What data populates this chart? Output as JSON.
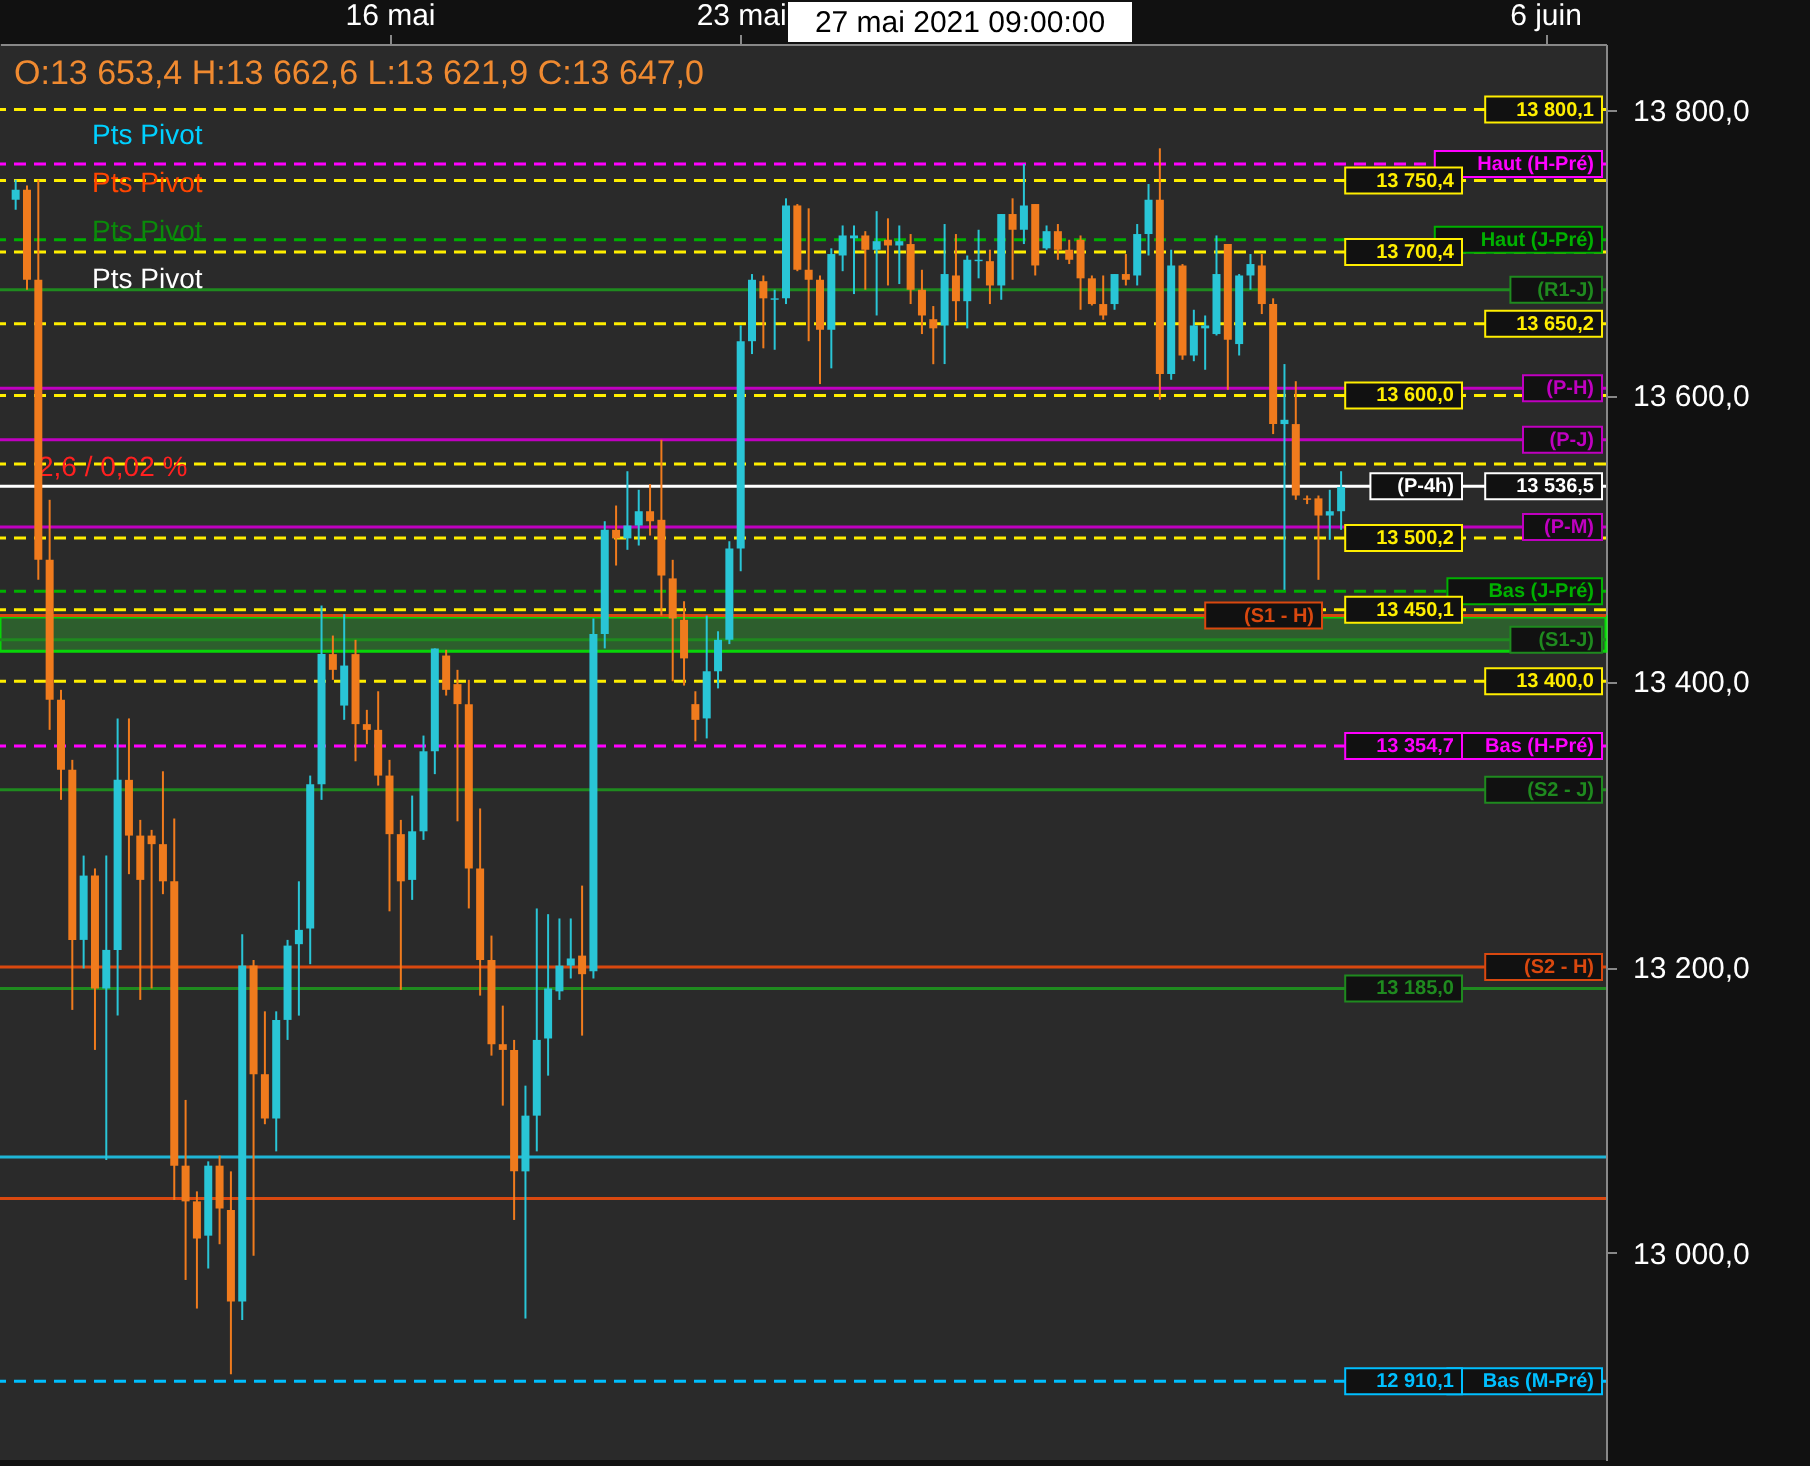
{
  "chart_data": {
    "type": "candlestick",
    "subtitle": "O:13 653,4   H:13 662,6   L:13 621,9   C:13 647,0",
    "categories": [
      null,
      null,
      null,
      null,
      null,
      null,
      null,
      null,
      null,
      null,
      null,
      null,
      null,
      null,
      null,
      null,
      null,
      null,
      null,
      null,
      null,
      null,
      null,
      null,
      null,
      null,
      null,
      null,
      null,
      null,
      null,
      null,
      null,
      "16 mai",
      null,
      null,
      null,
      null,
      null,
      null,
      null,
      null,
      null,
      null,
      null,
      null,
      null,
      null,
      null,
      null,
      null,
      null,
      null,
      null,
      null,
      null,
      null,
      null,
      null,
      null,
      null,
      null,
      null,
      null,
      "23 mai",
      null,
      null,
      null,
      null,
      null,
      null,
      null,
      null,
      null,
      null,
      null,
      null,
      null,
      null,
      null,
      null,
      null,
      null,
      null,
      null,
      null,
      null,
      null,
      null,
      null,
      null,
      null,
      null,
      null,
      null,
      null,
      null,
      null,
      null,
      null,
      null,
      null,
      null,
      null,
      null,
      null,
      null,
      null,
      null,
      null,
      null,
      null,
      null,
      null,
      null,
      null,
      null,
      null,
      null,
      null,
      null,
      null,
      null,
      null,
      null,
      null,
      null,
      null,
      null,
      null,
      null,
      null,
      null,
      null,
      null,
      "6 juin",
      null,
      null,
      null,
      null
    ],
    "ohlc": [
      [
        13737,
        13751,
        13730,
        13744
      ],
      [
        13744,
        13747,
        13674,
        13681
      ],
      [
        13681,
        13751,
        13471,
        13485
      ],
      [
        13485,
        13527,
        13366,
        13387
      ],
      [
        13387,
        13394,
        13317,
        13338
      ],
      [
        13338,
        13345,
        13170,
        13219
      ],
      [
        13219,
        13278,
        13199,
        13264
      ],
      [
        13264,
        13269,
        13142,
        13185
      ],
      [
        13185,
        13278,
        13065,
        13212
      ],
      [
        13212,
        13374,
        13166,
        13331
      ],
      [
        13331,
        13374,
        13265,
        13292
      ],
      [
        13292,
        13303,
        13177,
        13261
      ],
      [
        13292,
        13296,
        13185,
        13286
      ],
      [
        13286,
        13337,
        13251,
        13260
      ],
      [
        13260,
        13304,
        13037,
        13061
      ],
      [
        13061,
        13107,
        12981,
        13036
      ],
      [
        13036,
        13043,
        12961,
        13010
      ],
      [
        13012,
        13064,
        12989,
        13061
      ],
      [
        13061,
        13068,
        13006,
        13031
      ],
      [
        13030,
        13057,
        12915,
        12966
      ],
      [
        12966,
        13223,
        12953,
        13201
      ],
      [
        13201,
        13205,
        12998,
        13125
      ],
      [
        13125,
        13169,
        13090,
        13094
      ],
      [
        13094,
        13169,
        13071,
        13163
      ],
      [
        13163,
        13219,
        13149,
        13215
      ],
      [
        13216,
        13260,
        13166,
        13226
      ],
      [
        13227,
        13334,
        13202,
        13328
      ],
      [
        13328,
        13453,
        13317,
        13419
      ],
      [
        13419,
        13432,
        13401,
        13408
      ],
      [
        13383,
        13447,
        13373,
        13411
      ],
      [
        13419,
        13429,
        13344,
        13370
      ],
      [
        13370,
        13380,
        13356,
        13366
      ],
      [
        13366,
        13393,
        13327,
        13334
      ],
      [
        13334,
        13345,
        13239,
        13293
      ],
      [
        13293,
        13303,
        13184,
        13260
      ],
      [
        13261,
        13320,
        13247,
        13295
      ],
      [
        13295,
        13362,
        13289,
        13351
      ],
      [
        13351,
        13423,
        13335,
        13423
      ],
      [
        13418,
        13422,
        13390,
        13394
      ],
      [
        13398,
        13408,
        13302,
        13384
      ],
      [
        13384,
        13401,
        13241,
        13269
      ],
      [
        13269,
        13311,
        13180,
        13205
      ],
      [
        13205,
        13222,
        13138,
        13146
      ],
      [
        13146,
        13173,
        13103,
        13142
      ],
      [
        13142,
        13149,
        13023,
        13057
      ],
      [
        13057,
        13117,
        12954,
        13096
      ],
      [
        13096,
        13241,
        13071,
        13149
      ],
      [
        13150,
        13237,
        13124,
        13185
      ],
      [
        13183,
        13234,
        13177,
        13201
      ],
      [
        13201,
        13234,
        13192,
        13206
      ],
      [
        13208,
        13257,
        13152,
        13195
      ],
      [
        13197,
        13444,
        13192,
        13433
      ],
      [
        13433,
        13512,
        13423,
        13506
      ],
      [
        13506,
        13523,
        13481,
        13500
      ],
      [
        13500,
        13547,
        13492,
        13509
      ],
      [
        13509,
        13534,
        13495,
        13519
      ],
      [
        13519,
        13538,
        13502,
        13512
      ],
      [
        13513,
        13569,
        13446,
        13474
      ],
      [
        13472,
        13485,
        13400,
        13444
      ],
      [
        13443,
        13456,
        13397,
        13416
      ],
      [
        13384,
        13393,
        13358,
        13373
      ],
      [
        13374,
        13446,
        13360,
        13407
      ],
      [
        13407,
        13435,
        13395,
        13429
      ],
      [
        13429,
        13498,
        13426,
        13493
      ],
      [
        13493,
        13649,
        13477,
        13638
      ],
      [
        13638,
        13685,
        13629,
        13681
      ],
      [
        13680,
        13684,
        13633,
        13668
      ],
      [
        13667,
        13674,
        13632,
        13668
      ],
      [
        13668,
        13738,
        13664,
        13733
      ],
      [
        13733,
        13734,
        13687,
        13688
      ],
      [
        13688,
        13731,
        13638,
        13681
      ],
      [
        13681,
        13684,
        13608,
        13646
      ],
      [
        13646,
        13703,
        13619,
        13699
      ],
      [
        13698,
        13719,
        13687,
        13712
      ],
      [
        13710,
        13719,
        13671,
        13712
      ],
      [
        13712,
        13715,
        13674,
        13702
      ],
      [
        13702,
        13729,
        13656,
        13708
      ],
      [
        13709,
        13724,
        13677,
        13705
      ],
      [
        13705,
        13719,
        13678,
        13708
      ],
      [
        13706,
        13713,
        13664,
        13674
      ],
      [
        13674,
        13688,
        13643,
        13656
      ],
      [
        13653.4,
        13662.6,
        13621.9,
        13647.0
      ],
      [
        13649,
        13720,
        13622,
        13685
      ],
      [
        13684,
        13713,
        13652,
        13666
      ],
      [
        13666,
        13698,
        13647,
        13695
      ],
      [
        13694,
        13716,
        13682,
        13695
      ],
      [
        13694,
        13702,
        13664,
        13677
      ],
      [
        13677,
        13727,
        13667,
        13727
      ],
      [
        13727,
        13738,
        13681,
        13716
      ],
      [
        13716,
        13762,
        13706,
        13733
      ],
      [
        13734,
        13734,
        13684,
        13691
      ],
      [
        13703,
        13719,
        13702,
        13715
      ],
      [
        13715,
        13720,
        13695,
        13702
      ],
      [
        13702,
        13709,
        13692,
        13695
      ],
      [
        13709,
        13712,
        13660,
        13682
      ],
      [
        13682,
        13684,
        13663,
        13664
      ],
      [
        13664,
        13684,
        13653,
        13656
      ],
      [
        13664,
        13685,
        13660,
        13685
      ],
      [
        13685,
        13699,
        13677,
        13681
      ],
      [
        13684,
        13720,
        13677,
        13713
      ],
      [
        13713,
        13748,
        13698,
        13737
      ],
      [
        13737,
        13773,
        13597,
        13615
      ],
      [
        13615,
        13702,
        13611,
        13691
      ],
      [
        13691,
        13692,
        13625,
        13628
      ],
      [
        13628,
        13660,
        13624,
        13649
      ],
      [
        13647,
        13656,
        13618,
        13649
      ],
      [
        13643,
        13712,
        13642,
        13685
      ],
      [
        13706,
        13706,
        13604,
        13639
      ],
      [
        13636,
        13685,
        13628,
        13684
      ],
      [
        13684,
        13699,
        13674,
        13692
      ],
      [
        13691,
        13699,
        13657,
        13664
      ],
      [
        13664,
        13668,
        13573,
        13580
      ],
      [
        13580,
        13622,
        13464,
        13583
      ],
      [
        13580,
        13610,
        13527,
        13530
      ],
      [
        13528,
        13530,
        13524,
        13527
      ],
      [
        13528,
        13530,
        13471,
        13516
      ],
      [
        13516,
        13534,
        13499,
        13519
      ],
      [
        13519,
        13547,
        13506,
        13536
      ],
      null,
      null,
      null,
      null,
      null,
      null,
      null,
      null,
      null,
      null,
      null,
      null,
      null,
      null,
      null,
      null,
      null,
      null,
      null,
      null,
      null,
      null
    ],
    "ylim": [
      12855,
      13846
    ],
    "yticks": [
      {
        "value": 13000,
        "label": "13 000,0"
      },
      {
        "value": 13200,
        "label": "13 200,0"
      },
      {
        "value": 13400,
        "label": "13 400,0"
      },
      {
        "value": 13600,
        "label": "13 600,0"
      },
      {
        "value": 13800,
        "label": "13 800,0"
      }
    ],
    "ref_lines": [
      {
        "axis": "y",
        "value": 13800.1,
        "label": "13 800,1",
        "color": "#ffee00",
        "line_style": "dashed"
      },
      {
        "axis": "y",
        "value": 13762,
        "label": "Haut (H-Pré)",
        "color": "#ff00ff",
        "line_style": "dashed"
      },
      {
        "axis": "y",
        "value": 13750.4,
        "label": "13 750,4",
        "color": "#ffee00",
        "line_style": "dashed"
      },
      {
        "axis": "y",
        "value": 13709,
        "label": "Haut (J-Pré)",
        "color": "#00b000",
        "line_style": "dashed"
      },
      {
        "axis": "y",
        "value": 13700.4,
        "label": "13 700,4",
        "color": "#ffee00",
        "line_style": "dashed"
      },
      {
        "axis": "y",
        "value": 13674,
        "label": "(R1-J)",
        "color": "#1f8a1f",
        "line_style": "solid"
      },
      {
        "axis": "y",
        "value": 13650.2,
        "label": "13 650,2",
        "color": "#ffee00",
        "line_style": "dashed"
      },
      {
        "axis": "y",
        "value": 13605,
        "label": "(P-H)",
        "color": "#c000c0",
        "line_style": "solid"
      },
      {
        "axis": "y",
        "value": 13600.0,
        "label": "13 600,0",
        "color": "#ffee00",
        "line_style": "dashed"
      },
      {
        "axis": "y",
        "value": 13569,
        "label": "(P-J)",
        "color": "#c000c0",
        "line_style": "solid"
      },
      {
        "axis": "y",
        "value": 13552,
        "color": "#ffee00",
        "line_style": "dashed"
      },
      {
        "axis": "y",
        "value": 13536.5,
        "label": "13 536,5",
        "color": "#ffffff",
        "line_style": "solid"
      },
      {
        "axis": "y",
        "value": 13508,
        "label": "(P-M)",
        "color": "#c000c0",
        "line_style": "solid"
      },
      {
        "axis": "y",
        "value": 13500.2,
        "label": "13 500,2",
        "color": "#ffee00",
        "line_style": "dashed"
      },
      {
        "axis": "y",
        "value": 13463,
        "label": "Bas (J-Pré)",
        "color": "#00b000",
        "line_style": "dashed"
      },
      {
        "axis": "y",
        "value": 13450.1,
        "label": "13 450,1",
        "color": "#ffee00",
        "line_style": "dashed"
      },
      {
        "axis": "y",
        "value": 13446,
        "label": "(S1 - H)",
        "color": "#d9480f",
        "line_style": "solid"
      },
      {
        "axis": "y",
        "value": 13429,
        "label": "(S1-J)",
        "color": "#1f8a1f",
        "line_style": "solid"
      },
      {
        "axis": "y",
        "value": 13400.0,
        "label": "13 400,0",
        "color": "#ffee00",
        "line_style": "dashed"
      },
      {
        "axis": "y",
        "value": 13354.7,
        "label": "Bas (H-Pré)",
        "color": "#ff00ff",
        "line_style": "dashed"
      },
      {
        "axis": "y",
        "value": 13324,
        "label": "(S2 - J)",
        "color": "#1f8a1f",
        "line_style": "solid"
      },
      {
        "axis": "y",
        "value": 13200,
        "label": "(S2 - H)",
        "color": "#d9480f",
        "line_style": "solid"
      },
      {
        "axis": "y",
        "value": 13185,
        "label": "13 185,0",
        "color": "#1f8a1f",
        "line_style": "solid"
      },
      {
        "axis": "y",
        "value": 13067,
        "color": "#1fb5d6",
        "line_style": "solid"
      },
      {
        "axis": "y",
        "value": 13038,
        "color": "#d9480f",
        "line_style": "solid"
      },
      {
        "axis": "y",
        "value": 12910.1,
        "label": "Bas (M-Pré)",
        "color": "#00bfff",
        "line_style": "dashed"
      }
    ],
    "bands": [
      {
        "axis": "y",
        "from": 13421,
        "to": 13445,
        "color": "#2e6b2e"
      }
    ],
    "annotations": [
      "Pts Pivot",
      "Pts Pivot",
      "Pts Pivot",
      "Pts Pivot",
      "27 mai 2021 09:00:00",
      "2,6 / 0,02 %",
      {
        "text": "(P-4h)",
        "y": 13536.5
      },
      {
        "text": "13 354,7",
        "y": 13354.7
      },
      {
        "text": "12 910,1",
        "y": 12910.1
      }
    ],
    "grid": false
  }
}
